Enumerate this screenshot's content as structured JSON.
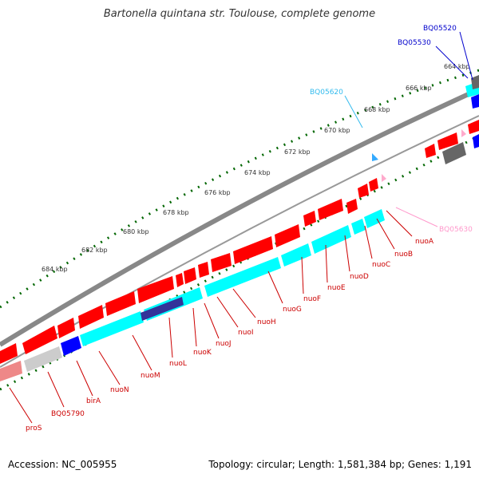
{
  "map": {
    "title": "Bartonella quintana str. Toulouse, complete genome",
    "accession_text": "Accession: NC_005955",
    "summary_text": "Topology: circular; Length: 1,581,384 bp; Genes: 1,191"
  },
  "colors": {
    "cds_red": "#ff0000",
    "cds_cyan": "#00ffff",
    "cds_blue": "#0000ff",
    "cds_gray": "#cccccc",
    "cds_darkgray": "#666666",
    "cds_pink": "#ff99cc",
    "cds_navy": "#333399",
    "tick_green": "#006600",
    "gene_label": "#cc0000",
    "ruler_label": "#333333",
    "backbone": "#888888"
  },
  "ruler_labels": [
    "664 kbp",
    "666 kbp",
    "668 kbp",
    "670 kbp",
    "672 kbp",
    "674 kbp",
    "676 kbp",
    "678 kbp",
    "680 kbp",
    "682 kbp",
    "684 kbp"
  ],
  "gene_labels": [
    "nuoA",
    "nuoB",
    "nuoC",
    "nuoD",
    "nuoE",
    "nuoF",
    "nuoG",
    "nuoH",
    "nuoI",
    "nuoJ",
    "nuoK",
    "nuoL",
    "nuoM",
    "nuoN",
    "birA",
    "BQ05790",
    "proS"
  ],
  "other_labels": {
    "bq05520": "BQ05520",
    "bq05530": "BQ05530",
    "bq05620": "BQ05620",
    "bq05630": "BQ05630"
  }
}
